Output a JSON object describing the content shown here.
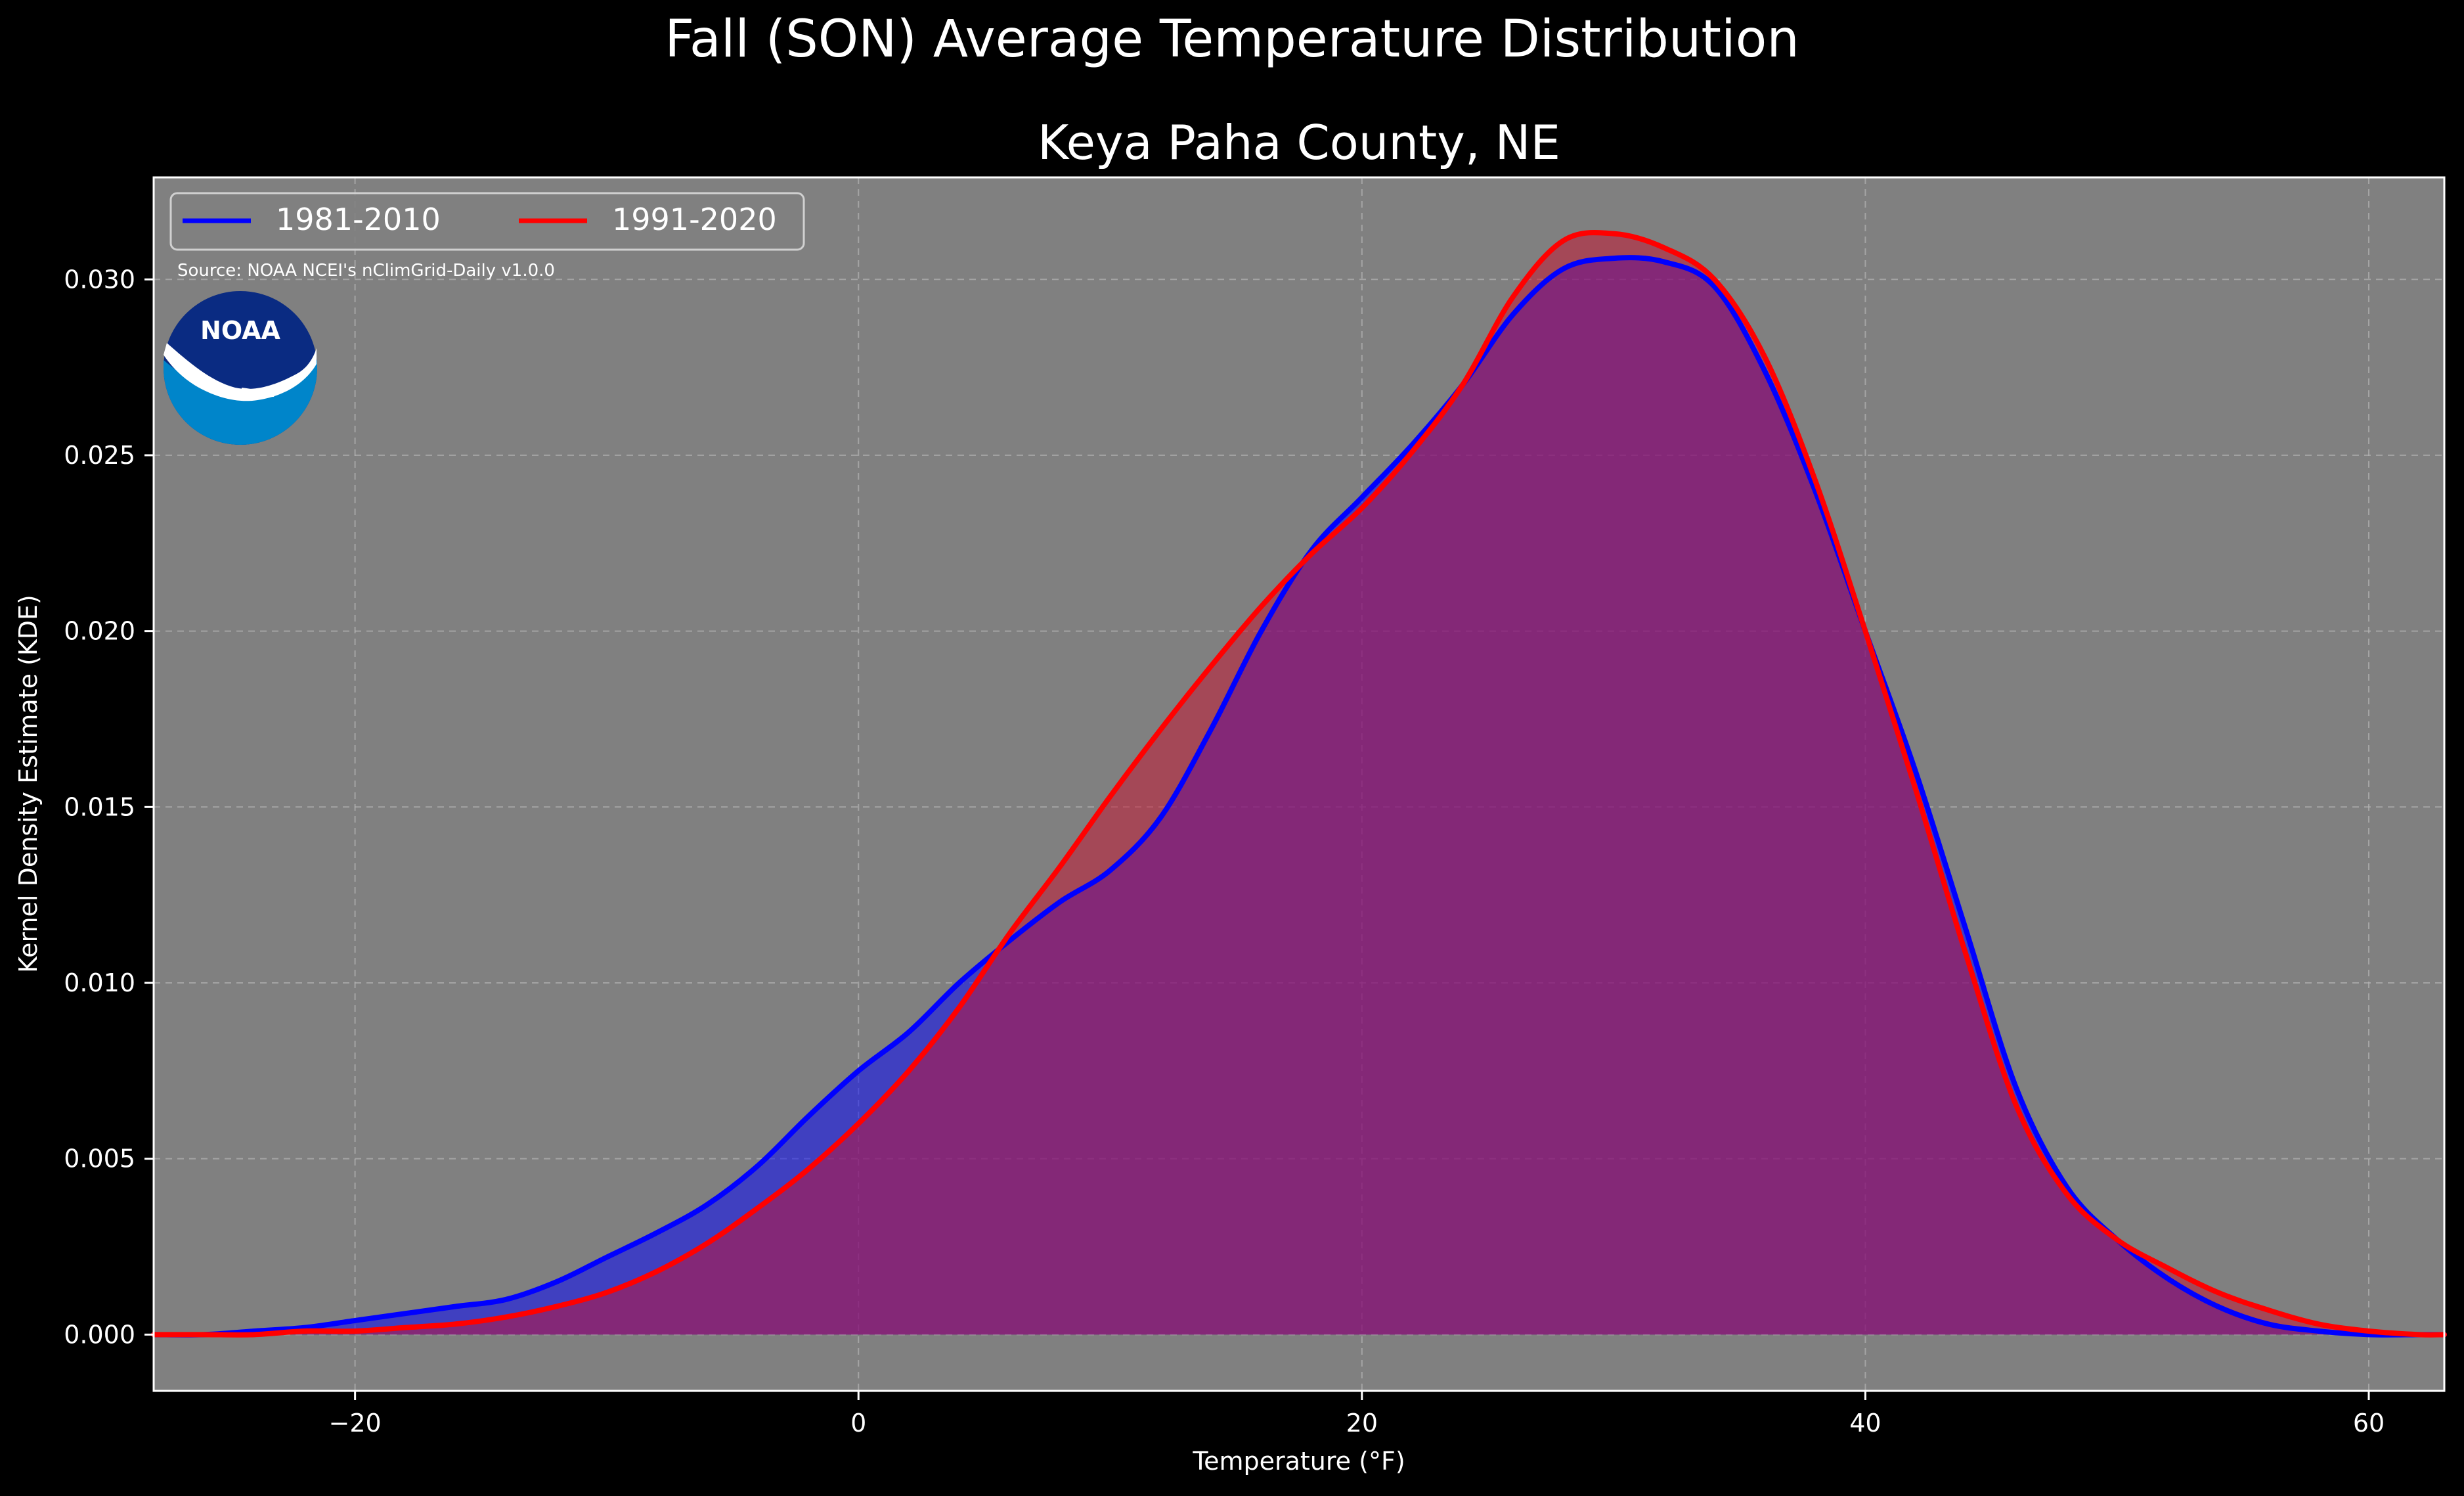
{
  "chart_data": {
    "type": "area",
    "title": "Fall (SON) Average Temperature Distribution",
    "subtitle": "Keya Paha County, NE",
    "xlabel": "Temperature ($^\\circ$F)",
    "xlabel_display": "Temperature (°F)",
    "ylabel": "Kernel Density Estimate (KDE)",
    "xlim": [
      -28,
      63
    ],
    "ylim": [
      -0.0016,
      0.0329
    ],
    "x_ticks": [
      -20,
      0,
      20,
      40,
      60
    ],
    "x_tick_labels": [
      "−20",
      "0",
      "20",
      "40",
      "60"
    ],
    "y_ticks": [
      0.0,
      0.005,
      0.01,
      0.015,
      0.02,
      0.025,
      0.03
    ],
    "y_tick_labels": [
      "0.000",
      "0.005",
      "0.010",
      "0.015",
      "0.020",
      "0.025",
      "0.030"
    ],
    "grid": true,
    "legend_position": "top-left",
    "source_note": "Source: NOAA NCEI's nClimGrid-Daily v1.0.0",
    "series": [
      {
        "name": "1981-2010",
        "color": "#0000ff",
        "fill": "#0000ff",
        "x": [
          -28,
          -26,
          -24,
          -22,
          -20,
          -18,
          -16,
          -14,
          -12,
          -10,
          -8,
          -6,
          -4,
          -2,
          0,
          2,
          4,
          6,
          8,
          10,
          12,
          14,
          16,
          18,
          20,
          22,
          24,
          26,
          28,
          30,
          32,
          34,
          36,
          38,
          40,
          42,
          44,
          46,
          48,
          50,
          52,
          54,
          56,
          58,
          60,
          62,
          63
        ],
        "y": [
          0.0,
          0.0,
          0.0001,
          0.0002,
          0.0004,
          0.0006,
          0.0008,
          0.001,
          0.0015,
          0.0022,
          0.0029,
          0.0037,
          0.0048,
          0.0062,
          0.0075,
          0.0086,
          0.01,
          0.0112,
          0.0123,
          0.0132,
          0.0147,
          0.0172,
          0.02,
          0.0223,
          0.0238,
          0.0253,
          0.027,
          0.029,
          0.0303,
          0.0306,
          0.0305,
          0.0298,
          0.0274,
          0.024,
          0.02,
          0.016,
          0.0115,
          0.007,
          0.0042,
          0.0027,
          0.0016,
          0.0008,
          0.0003,
          0.0001,
          0.0,
          0.0,
          0.0
        ]
      },
      {
        "name": "1991-2020",
        "color": "#ff0000",
        "fill": "#c8102e",
        "x": [
          -28,
          -26,
          -24,
          -22,
          -20,
          -18,
          -16,
          -14,
          -12,
          -10,
          -8,
          -6,
          -4,
          -2,
          0,
          2,
          4,
          6,
          8,
          10,
          12,
          14,
          16,
          18,
          20,
          22,
          24,
          26,
          28,
          30,
          32,
          34,
          36,
          38,
          40,
          42,
          44,
          46,
          48,
          50,
          52,
          54,
          56,
          58,
          60,
          62,
          63
        ],
        "y": [
          0.0,
          0.0,
          0.0,
          0.0001,
          0.0001,
          0.0002,
          0.0003,
          0.0005,
          0.0008,
          0.0012,
          0.0018,
          0.0026,
          0.0036,
          0.0047,
          0.006,
          0.0075,
          0.0093,
          0.0114,
          0.0133,
          0.0153,
          0.0172,
          0.019,
          0.0207,
          0.0222,
          0.0235,
          0.0251,
          0.027,
          0.0295,
          0.0311,
          0.0313,
          0.0309,
          0.03,
          0.0278,
          0.0243,
          0.02,
          0.0155,
          0.0108,
          0.0065,
          0.004,
          0.0027,
          0.0019,
          0.0012,
          0.0007,
          0.0003,
          0.0001,
          0.0,
          0.0
        ]
      }
    ]
  },
  "logo": {
    "text": "NOAA",
    "icon": "noaa-logo"
  },
  "colors": {
    "page_bg": "#000000",
    "plot_bg": "#808080",
    "grid": "#b4b4b4",
    "text": "#ffffff",
    "logo_dark": "#0a2b82",
    "logo_light": "#0085ca"
  }
}
